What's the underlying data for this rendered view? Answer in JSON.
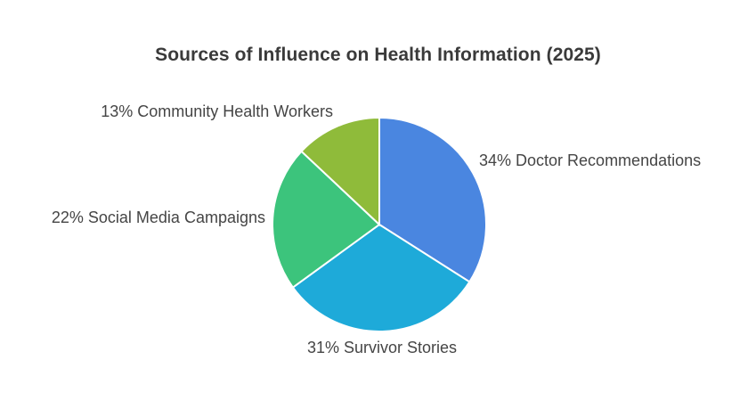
{
  "chart_data": {
    "type": "pie",
    "title": "Sources of Influence on Health Information (2025)",
    "slices": [
      {
        "label": "Doctor Recommendations",
        "value": 34,
        "display": "34% Doctor Recommendations",
        "color": "#4a86e0"
      },
      {
        "label": "Survivor Stories",
        "value": 31,
        "display": "31% Survivor Stories",
        "color": "#1eaad9"
      },
      {
        "label": "Social Media Campaigns",
        "value": 22,
        "display": "22% Social Media Campaigns",
        "color": "#3cc47c"
      },
      {
        "label": "Community Health Workers",
        "value": 13,
        "display": "13% Community Health Workers",
        "color": "#8fbb3a"
      }
    ],
    "start": "12 o'clock",
    "direction": "clockwise",
    "legend": "none"
  }
}
